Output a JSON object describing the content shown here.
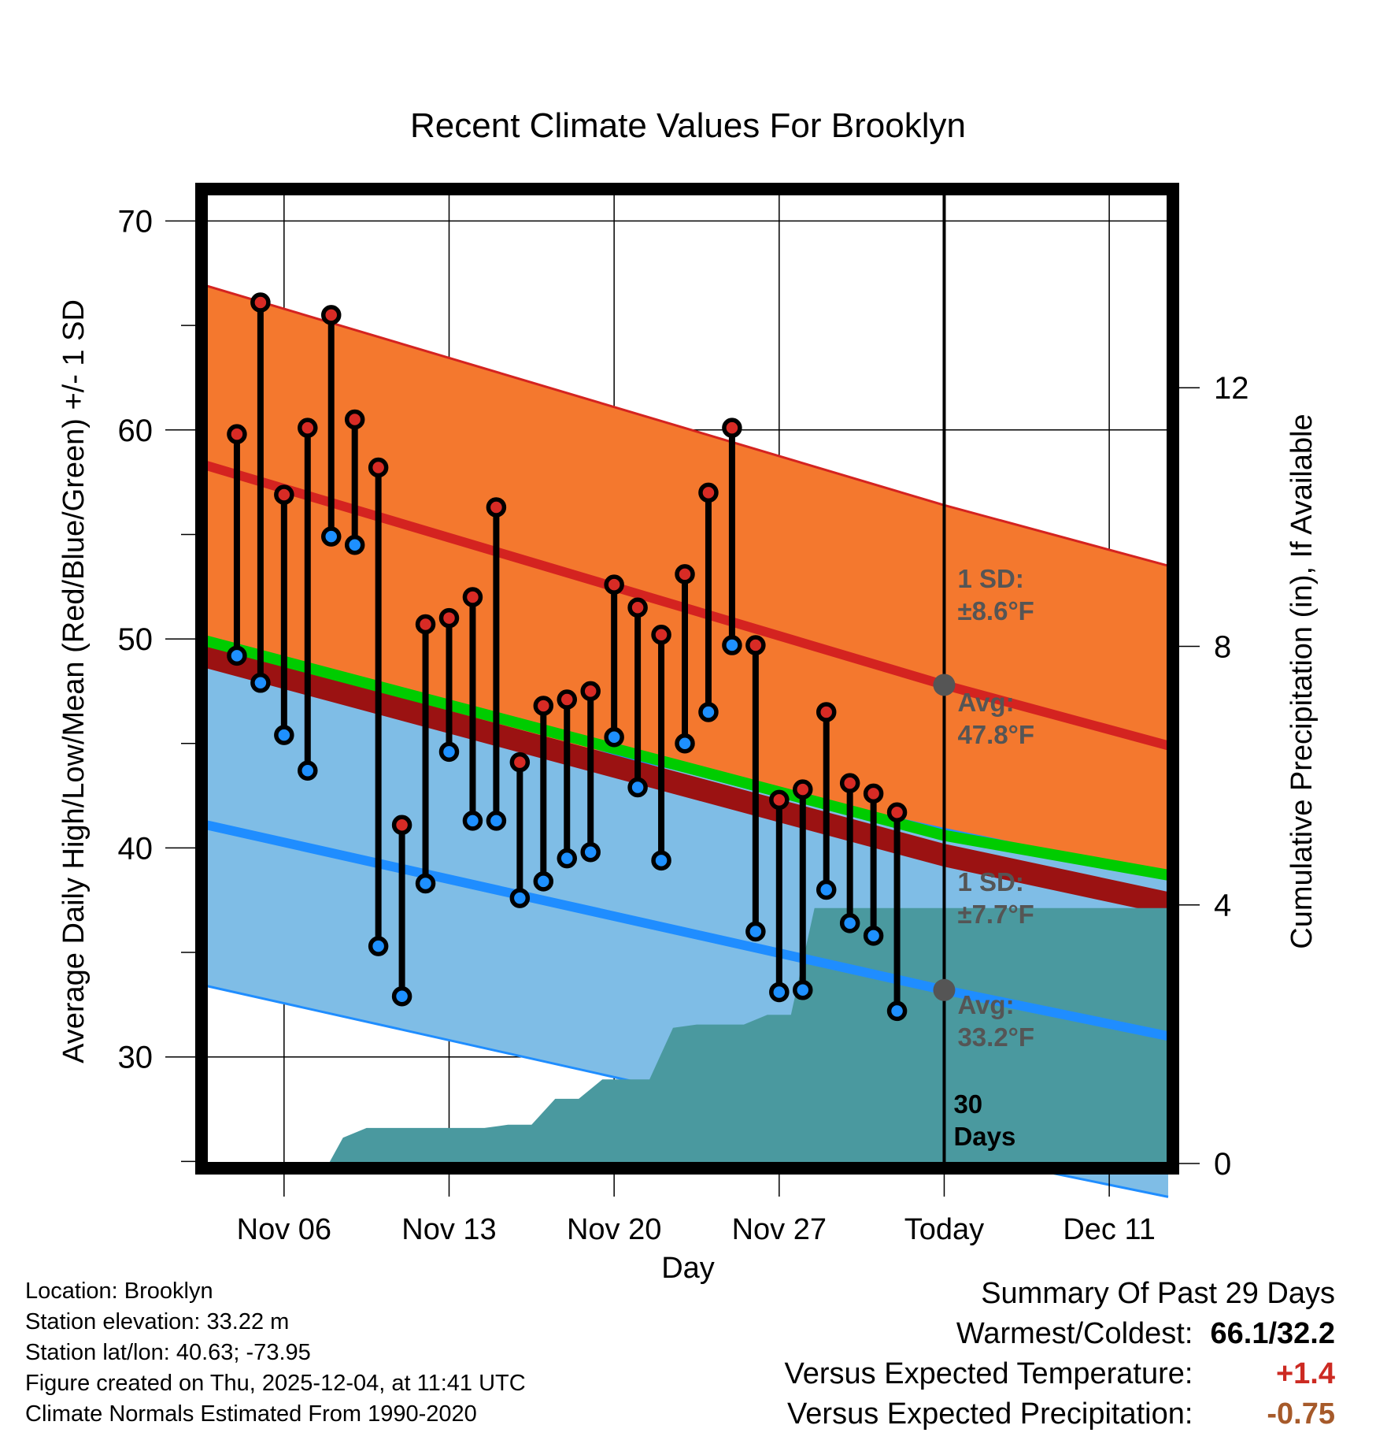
{
  "chart_data": {
    "type": "line",
    "title": "Recent Climate Values For Brooklyn",
    "xlabel": "Day",
    "ylabel": "Average Daily High/Low/Mean (Red/Blue/Green) +/- 1 SD",
    "y2label": "Cumulative Precipitation (in), If Available",
    "x_ticks": [
      "Nov 06",
      "Nov 13",
      "Nov 20",
      "Nov 27",
      "Today",
      "Dec 11"
    ],
    "x_tick_days": [
      3,
      10,
      17,
      24,
      31,
      38
    ],
    "xlim": [
      -0.3,
      40.5
    ],
    "ylim": [
      24.9,
      71.3
    ],
    "y_ticks": [
      30,
      40,
      50,
      60,
      70
    ],
    "y2lim": [
      0,
      15
    ],
    "y2_ticks": [
      0,
      4,
      8,
      12
    ],
    "today_day": 31,
    "days": [
      1,
      2,
      3,
      4,
      5,
      6,
      7,
      8,
      9,
      10,
      11,
      12,
      13,
      14,
      15,
      16,
      17,
      18,
      19,
      20,
      21,
      22,
      23,
      24,
      25,
      26,
      27,
      28,
      29,
      30
    ],
    "highs": [
      59.8,
      66.1,
      56.9,
      60.1,
      65.5,
      60.5,
      58.2,
      41.1,
      50.7,
      51.0,
      52.0,
      56.3,
      44.1,
      46.8,
      47.1,
      47.5,
      52.6,
      51.5,
      50.2,
      53.1,
      57.0,
      60.1,
      49.7,
      42.3,
      42.8,
      46.5,
      43.1,
      42.6,
      41.7,
      null
    ],
    "lows": [
      49.2,
      47.9,
      45.4,
      43.7,
      54.9,
      54.5,
      35.3,
      32.9,
      38.3,
      44.6,
      41.3,
      41.3,
      37.6,
      38.4,
      39.5,
      39.8,
      45.3,
      42.9,
      39.4,
      45.0,
      46.5,
      49.7,
      36.0,
      33.1,
      33.2,
      38.0,
      36.4,
      35.8,
      32.2,
      null
    ],
    "normal_high": {
      "days": [
        -0.3,
        31,
        40.5
      ],
      "values": [
        58.3,
        47.8,
        44.9
      ],
      "sd": 8.6
    },
    "normal_low": {
      "days": [
        -0.3,
        31,
        40.5
      ],
      "values": [
        41.1,
        33.2,
        31.0
      ],
      "sd": 7.7
    },
    "normal_mean": {
      "days": [
        -0.3,
        31,
        40.5
      ],
      "values": [
        49.7,
        40.2,
        37.9
      ]
    },
    "actual_mean_band": {
      "days": [
        -0.3,
        31,
        40.5
      ],
      "values": [
        49.9,
        40.6,
        38.7
      ]
    },
    "precip_cumulative": {
      "days": [
        4.9,
        5.5,
        6.5,
        11.5,
        12.5,
        13.5,
        14.5,
        15.5,
        16.5,
        17.5,
        18.5,
        19.5,
        20.5,
        21.5,
        22.5,
        23.5,
        24.5,
        25.5,
        26.5,
        27.5,
        28.5,
        29.5,
        40.5
      ],
      "values": [
        0.0,
        0.4,
        0.55,
        0.55,
        0.6,
        0.6,
        1.0,
        1.0,
        1.3,
        1.3,
        1.3,
        2.1,
        2.15,
        2.15,
        2.15,
        2.3,
        2.3,
        3.95,
        3.95,
        3.95,
        3.95,
        3.95,
        3.95
      ]
    },
    "annotations": {
      "high_sd": "1 SD:\n±8.6°F",
      "high_avg": "Avg:\n47.8°F",
      "low_sd": "1 SD:\n±7.7°F",
      "low_avg": "Avg:\n33.2°F",
      "days_label": "30\nDays"
    },
    "colors": {
      "high_band": "#f4782e",
      "high_line": "#d42320",
      "high_marker": "#d82b25",
      "low_band": "#7fbde6",
      "low_line": "#1f8dff",
      "low_marker": "#1e90ff",
      "mean_band": "#00cc00",
      "mean_dark": "#9b1212",
      "precip": "#4a999f",
      "annotation": "#555555"
    }
  },
  "footer": {
    "location": "Location: Brooklyn",
    "elevation": "Station elevation: 33.22 m",
    "latlon": "Station lat/lon: 40.63; -73.95",
    "created": "Figure created on Thu, 2025-12-04, at 11:41 UTC",
    "normals": "Climate Normals Estimated From 1990-2020"
  },
  "summary": {
    "title": "Summary Of Past 29 Days",
    "warm_cold_label": "Warmest/Coldest:",
    "warm_cold_value": "66.1/32.2",
    "temp_label": "Versus Expected Temperature:",
    "temp_value": "+1.4",
    "temp_color": "#cc2a22",
    "precip_label": "Versus Expected Precipitation:",
    "precip_value": "-0.75",
    "precip_color": "#a65a2a"
  }
}
